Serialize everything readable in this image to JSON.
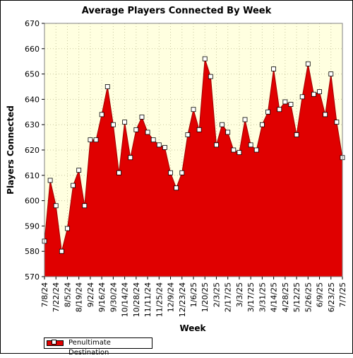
{
  "chart_data": {
    "type": "area",
    "title": "Average Players Connected By Week",
    "xlabel": "Week",
    "ylabel": "Players Connected",
    "ylim": [
      570,
      670
    ],
    "yticks": [
      570,
      580,
      590,
      600,
      610,
      620,
      630,
      640,
      650,
      660,
      670
    ],
    "grid": true,
    "legend_position": "bottom-left",
    "x_tick_labels": [
      "7/8/24",
      "7/22/24",
      "8/5/24",
      "8/19/24",
      "9/2/24",
      "9/16/24",
      "9/30/24",
      "10/14/24",
      "10/28/24",
      "11/11/24",
      "11/25/24",
      "12/9/24",
      "12/23/24",
      "1/6/25",
      "1/20/25",
      "2/3/25",
      "2/17/25",
      "3/3/25",
      "3/17/25",
      "3/31/25",
      "4/14/25",
      "4/28/25",
      "5/12/25",
      "5/26/25",
      "6/9/25",
      "6/23/25",
      "7/7/25"
    ],
    "series": [
      {
        "name": "Penultimate Destination",
        "color": "#e00000",
        "values": [
          584,
          608,
          598,
          580,
          589,
          606,
          612,
          598,
          624,
          624,
          634,
          645,
          630,
          611,
          631,
          617,
          628,
          633,
          627,
          624,
          622,
          621,
          611,
          605,
          611,
          626,
          636,
          628,
          656,
          649,
          622,
          630,
          627,
          620,
          619,
          632,
          622,
          620,
          630,
          635,
          652,
          636,
          639,
          638,
          626,
          641,
          654,
          642,
          643,
          634,
          650,
          631,
          617
        ]
      }
    ]
  }
}
